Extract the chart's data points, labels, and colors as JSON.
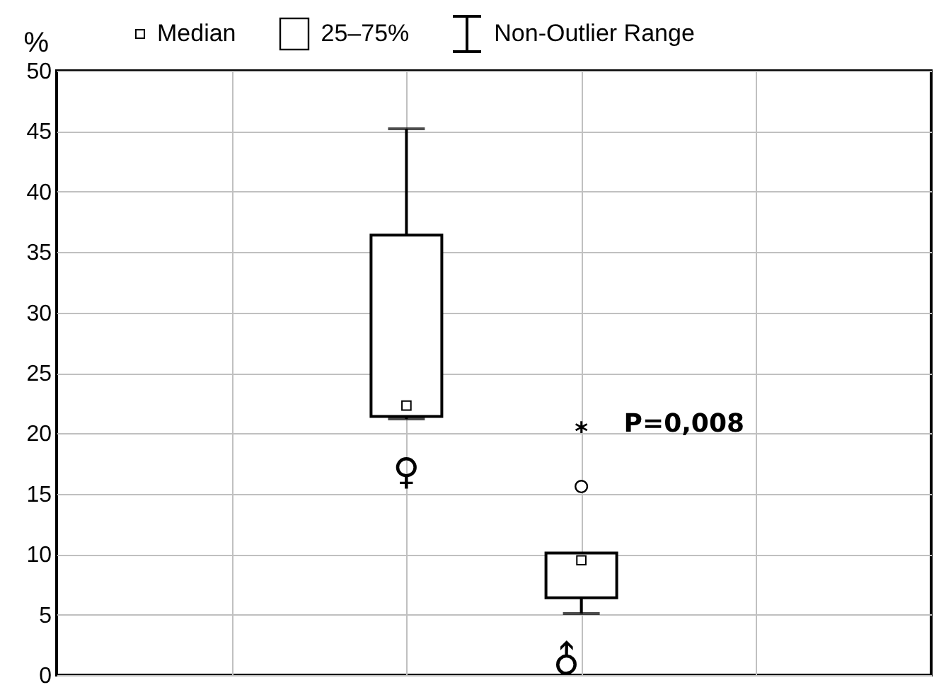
{
  "chart_data": {
    "type": "box",
    "ylabel": "%",
    "categories": [
      null,
      null,
      null,
      null
    ],
    "boxes": [
      null,
      {
        "low": 21.2,
        "q1": 21.4,
        "median": 22.3,
        "q3": 36.4,
        "high": 45.2
      },
      {
        "low": 5.1,
        "q1": 6.4,
        "median": 9.5,
        "q3": 10.1,
        "high": 10.1,
        "outliers": [
          15.6
        ]
      },
      null
    ],
    "ylim": [
      0,
      50
    ],
    "yticks": [
      0,
      5,
      10,
      15,
      20,
      25,
      30,
      35,
      40,
      45,
      50
    ],
    "grid": true,
    "tick_labels": "y",
    "color": "#ffffff",
    "annotations": [
      "Median",
      "25–75%",
      "Non-Outlier Range",
      "♀",
      "♂",
      "*",
      "P=0,008"
    ]
  }
}
